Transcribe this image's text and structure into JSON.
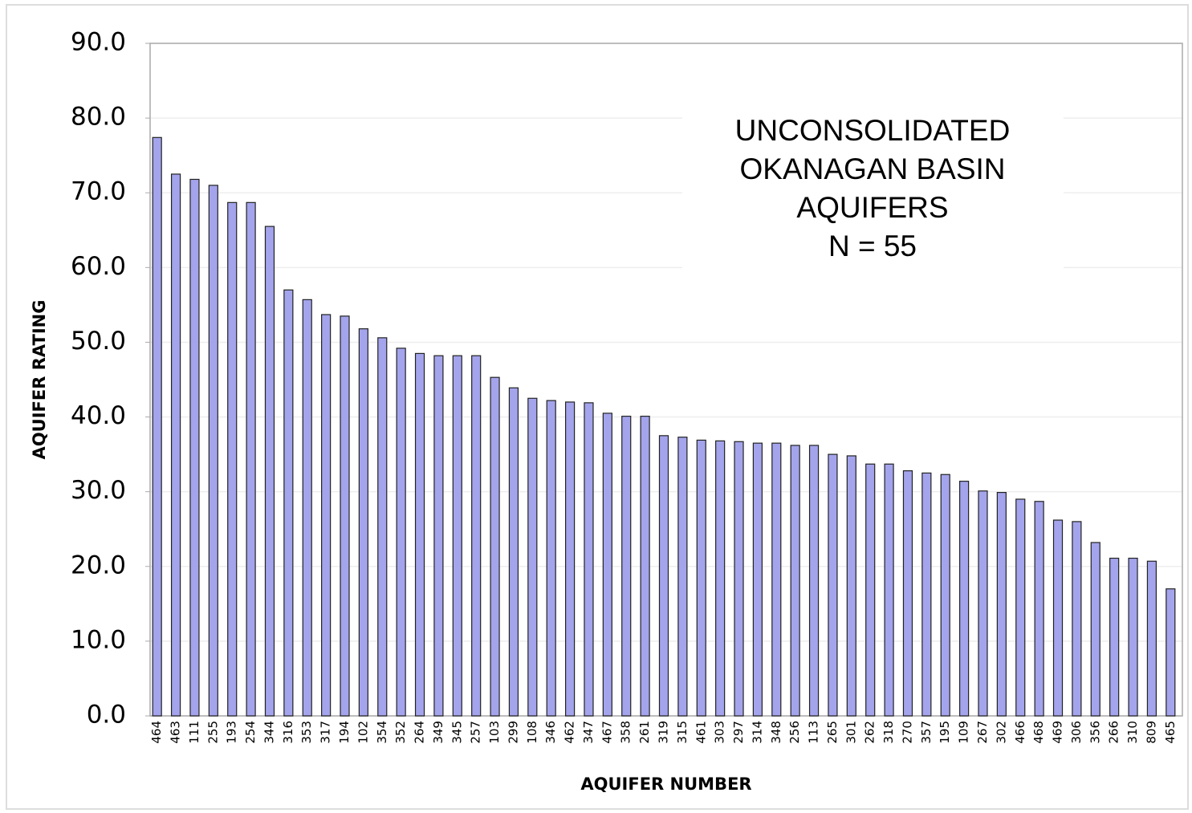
{
  "chart_data": {
    "type": "bar",
    "categories": [
      "464",
      "463",
      "111",
      "255",
      "193",
      "254",
      "344",
      "316",
      "353",
      "317",
      "194",
      "102",
      "354",
      "352",
      "264",
      "349",
      "345",
      "257",
      "103",
      "299",
      "108",
      "346",
      "462",
      "347",
      "467",
      "358",
      "261",
      "319",
      "315",
      "461",
      "303",
      "297",
      "314",
      "348",
      "256",
      "113",
      "265",
      "301",
      "262",
      "318",
      "270",
      "357",
      "195",
      "109",
      "267",
      "302",
      "466",
      "468",
      "469",
      "306",
      "356",
      "266",
      "310",
      "809",
      "465"
    ],
    "values": [
      77.4,
      72.5,
      71.8,
      71.0,
      68.7,
      68.7,
      65.5,
      57.0,
      55.7,
      53.7,
      53.5,
      51.8,
      50.6,
      49.2,
      48.5,
      48.2,
      48.2,
      48.2,
      45.3,
      43.9,
      42.5,
      42.2,
      42.0,
      41.9,
      40.5,
      40.1,
      40.1,
      37.5,
      37.3,
      36.9,
      36.8,
      36.7,
      36.5,
      36.5,
      36.2,
      36.2,
      35.0,
      34.8,
      33.7,
      33.7,
      32.8,
      32.5,
      32.3,
      31.4,
      30.1,
      29.9,
      29.0,
      28.7,
      26.2,
      26.0,
      23.2,
      21.1,
      21.1,
      20.7,
      17.0
    ],
    "color": "#a4a4ec",
    "ylim": [
      0,
      90
    ],
    "yticks": [
      {
        "value": 0,
        "label": "0.0"
      },
      {
        "value": 10,
        "label": "10.0"
      },
      {
        "value": 20,
        "label": "20.0"
      },
      {
        "value": 30,
        "label": "30.0"
      },
      {
        "value": 40,
        "label": "40.0"
      },
      {
        "value": 50,
        "label": "50.0"
      },
      {
        "value": 60,
        "label": "60.0"
      },
      {
        "value": 70,
        "label": "70.0"
      },
      {
        "value": 80,
        "label": "80.0"
      },
      {
        "value": 90,
        "label": "90.0"
      }
    ],
    "grid": true,
    "x_label": "AQUIFER NUMBER",
    "y_label": "AQUIFER RATING",
    "annotation": [
      "UNCONSOLIDATED",
      "OKANAGAN BASIN",
      "AQUIFERS",
      "N = 55"
    ]
  }
}
